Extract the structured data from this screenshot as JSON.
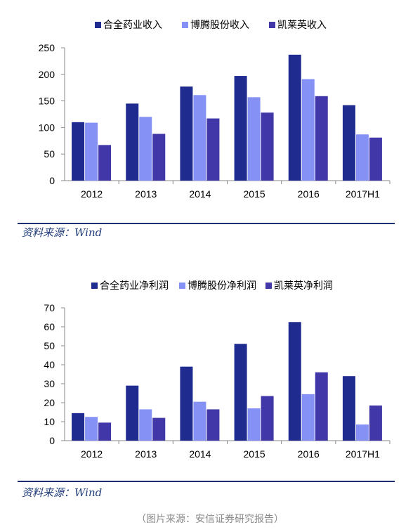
{
  "colors": {
    "s1": "#1f2b8f",
    "s2": "#8691f5",
    "s3": "#4137a8",
    "axis": "#888888",
    "rule": "#1f2f73"
  },
  "chart_data": [
    {
      "type": "bar",
      "categories": [
        "2012",
        "2013",
        "2014",
        "2015",
        "2016",
        "2017H1"
      ],
      "series": [
        {
          "name": "合全药业收入",
          "values": [
            110,
            145,
            177,
            197,
            237,
            142
          ]
        },
        {
          "name": "博腾股份收入",
          "values": [
            109,
            120,
            161,
            157,
            191,
            87
          ]
        },
        {
          "name": "凯莱英收入",
          "values": [
            67,
            88,
            117,
            128,
            159,
            81
          ]
        }
      ],
      "yticks": [
        "0",
        "50",
        "100",
        "150",
        "200",
        "250"
      ],
      "ylim": [
        0,
        250
      ],
      "legend": "top",
      "grid": false
    },
    {
      "type": "bar",
      "categories": [
        "2012",
        "2013",
        "2014",
        "2015",
        "2016",
        "2017H1"
      ],
      "series": [
        {
          "name": "合全药业净利润",
          "values": [
            14.5,
            29,
            39,
            51,
            62.5,
            34
          ]
        },
        {
          "name": "博腾股份净利润",
          "values": [
            12.5,
            16.5,
            20.5,
            17,
            24.5,
            8.5
          ]
        },
        {
          "name": "凯莱英净利润",
          "values": [
            9.5,
            12,
            16.5,
            23.5,
            36,
            18.5
          ]
        }
      ],
      "yticks": [
        "0",
        "10",
        "20",
        "30",
        "40",
        "50",
        "60",
        "70"
      ],
      "ylim": [
        0,
        70
      ],
      "legend": "top",
      "grid": false
    }
  ],
  "source1": "资料来源：Wind",
  "source2": "资料来源：Wind",
  "caption": "（图片来源：安信证券研究报告）"
}
